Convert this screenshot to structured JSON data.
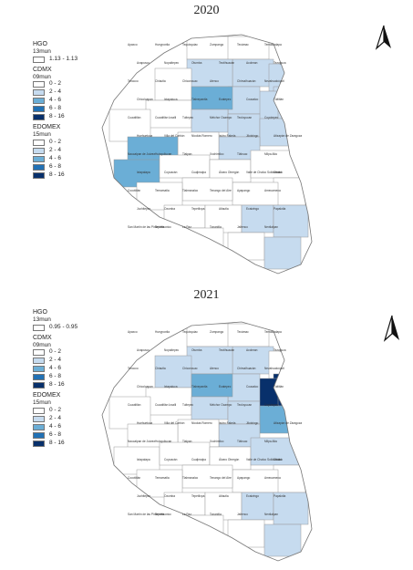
{
  "colors": {
    "bin0": "#ffffff",
    "bin1": "#c6dbef",
    "bin2": "#6baed6",
    "bin3": "#2171b5",
    "bin4": "#08306b",
    "hgo": "#ffffff",
    "border": "#9a9a9a",
    "label": "#333333"
  },
  "bins": [
    "0 - 2",
    "2 - 4",
    "4 - 6",
    "6 - 8",
    "8 - 16"
  ],
  "panels": [
    {
      "year": "2020",
      "legend": {
        "hgo_title": "HGO",
        "hgo_count": "13mun",
        "hgo_range": "1.13 - 1.13",
        "cdmx_title": "CDMX",
        "cdmx_count": "09mun",
        "edomex_title": "EDOMEX",
        "edomex_count": "15mun"
      },
      "labels": [
        "Apaxco",
        "Hueypoxtla",
        "Tequixquiac",
        "Zumpango",
        "Tecámac",
        "Temascalapa",
        "Axapusco",
        "Nopaltepec",
        "Otumba",
        "Teotihuacán",
        "Acolman",
        "Tezoyuca",
        "Texcoco",
        "Chiautla",
        "Chiconcuac",
        "Atenco",
        "Chimalhuacán",
        "Nezahualcóyotl",
        "Chicoloapan",
        "Ixtapaluca",
        "Tlalnepantla",
        "Ecatepec",
        "Coacalco",
        "Tultitlán",
        "Cuautitlán",
        "Cuautitlán Izcalli",
        "Tultepec",
        "Melchor Ocampo",
        "Teoloyucan",
        "Coyotepec",
        "Huehuetoca",
        "Villa del Carbón",
        "Nicolás Romero",
        "Isidro Fabela",
        "Jilotzingo",
        "Atizapán de Zaragoza",
        "Naucalpan de Juárez",
        "Huixquilucan",
        "Tlalpan",
        "Xochimilco",
        "Tláhuac",
        "Milpa Alta",
        "Iztapalapa",
        "Coyoacán",
        "Cuajimalpa",
        "Álvaro Obregón",
        "Valle de Chalco Solidaridad",
        "Chalco",
        "Cocotitlán",
        "Temamatla",
        "Tlalmanalco",
        "Tenango del Aire",
        "Ayapango",
        "Amecameca",
        "Juchitepec",
        "Ozumba",
        "Tepetlixpa",
        "Atlautla",
        "Ecatzingo",
        "Papalotla",
        "San Martín de las Pirámides",
        "Tepetlaoxtoc",
        "La Paz",
        "Tonanitla",
        "Jaltenco",
        "Nextlalpan"
      ]
    },
    {
      "year": "2021",
      "legend": {
        "hgo_title": "HGO",
        "hgo_count": "13mun",
        "hgo_range": "0.95 - 0.95",
        "cdmx_title": "CDMX",
        "cdmx_count": "09mun",
        "edomex_title": "EDOMEX",
        "edomex_count": "15mun"
      },
      "labels": [
        "Apaxco",
        "Hueypoxtla",
        "Tequixquiac",
        "Zumpango",
        "Tecámac",
        "Temascalapa",
        "Axapusco",
        "Nopaltepec",
        "Otumba",
        "Teotihuacán",
        "Acolman",
        "Tezoyuca",
        "Texcoco",
        "Chiautla",
        "Chiconcuac",
        "Atenco",
        "Chimalhuacán",
        "Nezahualcóyotl",
        "Chicoloapan",
        "Ixtapaluca",
        "Tlalnepantla",
        "Ecatepec",
        "Coacalco",
        "Tultitlán",
        "Cuautitlán",
        "Cuautitlán Izcalli",
        "Tultepec",
        "Melchor Ocampo",
        "Teoloyucan",
        "Coyotepec",
        "Huehuetoca",
        "Villa del Carbón",
        "Nicolás Romero",
        "Isidro Fabela",
        "Jilotzingo",
        "Atizapán de Zaragoza",
        "Naucalpan de Juárez",
        "Huixquilucan",
        "Tlalpan",
        "Xochimilco",
        "Tláhuac",
        "Milpa Alta",
        "Iztapalapa",
        "Coyoacán",
        "Cuajimalpa",
        "Álvaro Obregón",
        "Valle de Chalco Solidaridad",
        "Chalco",
        "Cocotitlán",
        "Temamatla",
        "Tlalmanalco",
        "Tenango del Aire",
        "Ayapango",
        "Amecameca",
        "Juchitepec",
        "Ozumba",
        "Tepetlixpa",
        "Atlautla",
        "Ecatzingo",
        "Papalotla",
        "San Martín de las Pirámides",
        "Tepetlaoxtoc",
        "La Paz",
        "Tonanitla",
        "Jaltenco",
        "Nextlalpan"
      ]
    }
  ]
}
